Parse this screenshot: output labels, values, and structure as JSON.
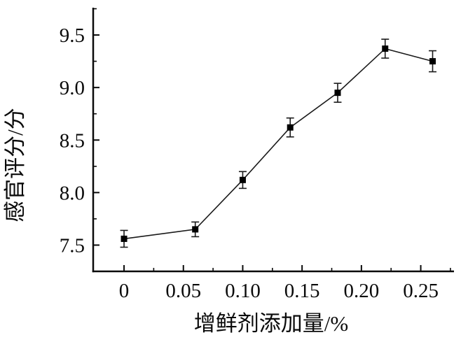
{
  "figure": {
    "background": "#ffffff",
    "axis_color": "#0a0a0a",
    "line_color": "#1a1a1a",
    "marker_color": "#000000",
    "error_bar_color": "#1a1a1a"
  },
  "chart_data": {
    "type": "line",
    "title": "",
    "xlabel": "增鲜剂添加量/%",
    "ylabel": "感官评分/分",
    "x": [
      0,
      0.06,
      0.1,
      0.14,
      0.18,
      0.22,
      0.26
    ],
    "y": [
      7.56,
      7.65,
      8.12,
      8.62,
      8.95,
      9.37,
      9.25
    ],
    "y_err": [
      0.08,
      0.07,
      0.08,
      0.09,
      0.09,
      0.09,
      0.1
    ],
    "marker": "filled-square",
    "grid": false,
    "legend": null,
    "xlim": [
      -0.026,
      0.278
    ],
    "ylim": [
      7.25,
      9.76
    ],
    "x_major_ticks": [
      0,
      0.05,
      0.1,
      0.15,
      0.2,
      0.25
    ],
    "x_tick_labels": [
      "0",
      "0.05",
      "0.10",
      "0.15",
      "0.20",
      "0.25"
    ],
    "x_minor_ticks": [
      0.025,
      0.075,
      0.125,
      0.175,
      0.225,
      0.275
    ],
    "y_major_ticks": [
      7.5,
      8.0,
      8.5,
      9.0,
      9.5
    ],
    "y_tick_labels": [
      "7.5",
      "8.0",
      "8.5",
      "9.0",
      "9.5"
    ],
    "y_minor_ticks": [
      7.75,
      8.25,
      8.75,
      9.25,
      9.75
    ]
  }
}
